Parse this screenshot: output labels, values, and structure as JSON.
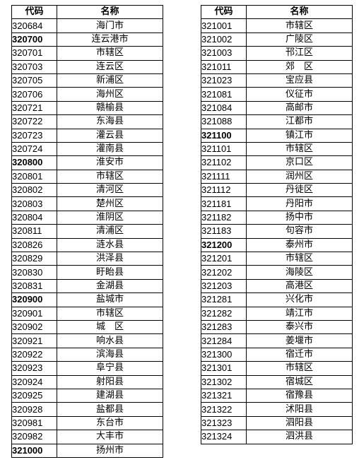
{
  "header": {
    "code": "代码",
    "name": "名称"
  },
  "left_rows": [
    {
      "code": "320684",
      "name": "海门市",
      "bold": false
    },
    {
      "code": "320700",
      "name": "连云港市",
      "bold": true
    },
    {
      "code": "320701",
      "name": "市辖区",
      "bold": false
    },
    {
      "code": "320703",
      "name": "连云区",
      "bold": false
    },
    {
      "code": "320705",
      "name": "新浦区",
      "bold": false
    },
    {
      "code": "320706",
      "name": "海州区",
      "bold": false
    },
    {
      "code": "320721",
      "name": "赣榆县",
      "bold": false
    },
    {
      "code": "320722",
      "name": "东海县",
      "bold": false
    },
    {
      "code": "320723",
      "name": "灌云县",
      "bold": false
    },
    {
      "code": "320724",
      "name": "灌南县",
      "bold": false
    },
    {
      "code": "320800",
      "name": "淮安市",
      "bold": true
    },
    {
      "code": "320801",
      "name": "市辖区",
      "bold": false
    },
    {
      "code": "320802",
      "name": "清河区",
      "bold": false
    },
    {
      "code": "320803",
      "name": "楚州区",
      "bold": false
    },
    {
      "code": "320804",
      "name": "淮阴区",
      "bold": false
    },
    {
      "code": "320811",
      "name": "清浦区",
      "bold": false
    },
    {
      "code": "320826",
      "name": "涟水县",
      "bold": false
    },
    {
      "code": "320829",
      "name": "洪泽县",
      "bold": false
    },
    {
      "code": "320830",
      "name": "盱眙县",
      "bold": false
    },
    {
      "code": "320831",
      "name": "金湖县",
      "bold": false
    },
    {
      "code": "320900",
      "name": "盐城市",
      "bold": true
    },
    {
      "code": "320901",
      "name": "市辖区",
      "bold": false
    },
    {
      "code": "320902",
      "name": "城　区",
      "bold": false
    },
    {
      "code": "320921",
      "name": "响水县",
      "bold": false
    },
    {
      "code": "320922",
      "name": "滨海县",
      "bold": false
    },
    {
      "code": "320923",
      "name": "阜宁县",
      "bold": false
    },
    {
      "code": "320924",
      "name": "射阳县",
      "bold": false
    },
    {
      "code": "320925",
      "name": "建湖县",
      "bold": false
    },
    {
      "code": "320928",
      "name": "盐都县",
      "bold": false
    },
    {
      "code": "320981",
      "name": "东台市",
      "bold": false
    },
    {
      "code": "320982",
      "name": "大丰市",
      "bold": false
    },
    {
      "code": "321000",
      "name": "扬州市",
      "bold": true
    }
  ],
  "right_rows": [
    {
      "code": "321001",
      "name": "市辖区",
      "bold": false
    },
    {
      "code": "321002",
      "name": "广陵区",
      "bold": false
    },
    {
      "code": "321003",
      "name": "邗江区",
      "bold": false
    },
    {
      "code": "321011",
      "name": "郊　区",
      "bold": false
    },
    {
      "code": "321023",
      "name": "宝应县",
      "bold": false
    },
    {
      "code": "321081",
      "name": "仪征市",
      "bold": false
    },
    {
      "code": "321084",
      "name": "高邮市",
      "bold": false
    },
    {
      "code": "321088",
      "name": "江都市",
      "bold": false
    },
    {
      "code": "321100",
      "name": "镇江市",
      "bold": true
    },
    {
      "code": "321101",
      "name": "市辖区",
      "bold": false
    },
    {
      "code": "321102",
      "name": "京口区",
      "bold": false
    },
    {
      "code": "321111",
      "name": "润州区",
      "bold": false
    },
    {
      "code": "321112",
      "name": "丹徒区",
      "bold": false
    },
    {
      "code": "321181",
      "name": "丹阳市",
      "bold": false
    },
    {
      "code": "321182",
      "name": "扬中市",
      "bold": false
    },
    {
      "code": "321183",
      "name": "句容市",
      "bold": false
    },
    {
      "code": "321200",
      "name": "泰州市",
      "bold": true
    },
    {
      "code": "321201",
      "name": "市辖区",
      "bold": false
    },
    {
      "code": "321202",
      "name": "海陵区",
      "bold": false
    },
    {
      "code": "321203",
      "name": "高港区",
      "bold": false
    },
    {
      "code": "321281",
      "name": "兴化市",
      "bold": false
    },
    {
      "code": "321282",
      "name": "靖江市",
      "bold": false
    },
    {
      "code": "321283",
      "name": "泰兴市",
      "bold": false
    },
    {
      "code": "321284",
      "name": "姜堰市",
      "bold": false
    },
    {
      "code": "321300",
      "name": "宿迁市",
      "bold": false
    },
    {
      "code": "321301",
      "name": "市辖区",
      "bold": false
    },
    {
      "code": "321302",
      "name": "宿城区",
      "bold": false
    },
    {
      "code": "321321",
      "name": "宿豫县",
      "bold": false
    },
    {
      "code": "321322",
      "name": "沭阳县",
      "bold": false
    },
    {
      "code": "321323",
      "name": "泗阳县",
      "bold": false
    },
    {
      "code": "321324",
      "name": "泗洪县",
      "bold": false
    }
  ]
}
